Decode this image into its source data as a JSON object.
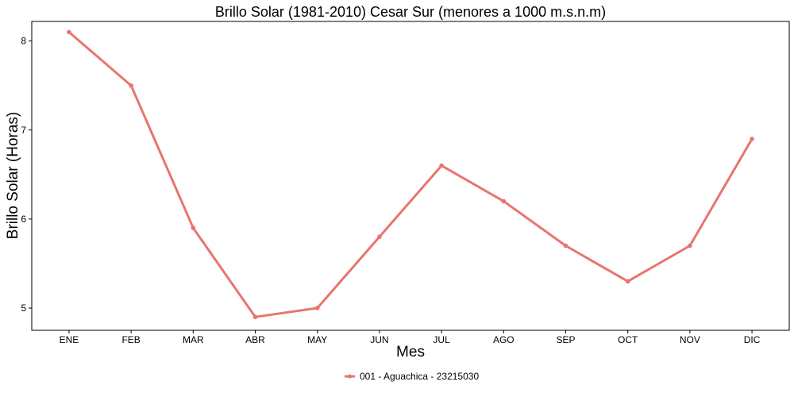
{
  "chart_data": {
    "type": "line",
    "title": "Brillo Solar (1981-2010) Cesar Sur (menores a 1000 m.s.n.m)",
    "xlabel": "Mes",
    "ylabel": "Brillo Solar (Horas)",
    "categories": [
      "ENE",
      "FEB",
      "MAR",
      "ABR",
      "MAY",
      "JUN",
      "JUL",
      "AGO",
      "SEP",
      "OCT",
      "NOV",
      "DIC"
    ],
    "yticks": [
      5,
      6,
      7,
      8
    ],
    "ylim": [
      4.75,
      8.22
    ],
    "grid": false,
    "legend_position": "bottom",
    "series": [
      {
        "name": "001 - Aguachica - 23215030",
        "color": "#e8756d",
        "values": [
          8.1,
          7.5,
          5.9,
          4.9,
          5.0,
          5.8,
          6.6,
          6.2,
          5.7,
          5.3,
          5.7,
          6.9
        ]
      }
    ]
  }
}
